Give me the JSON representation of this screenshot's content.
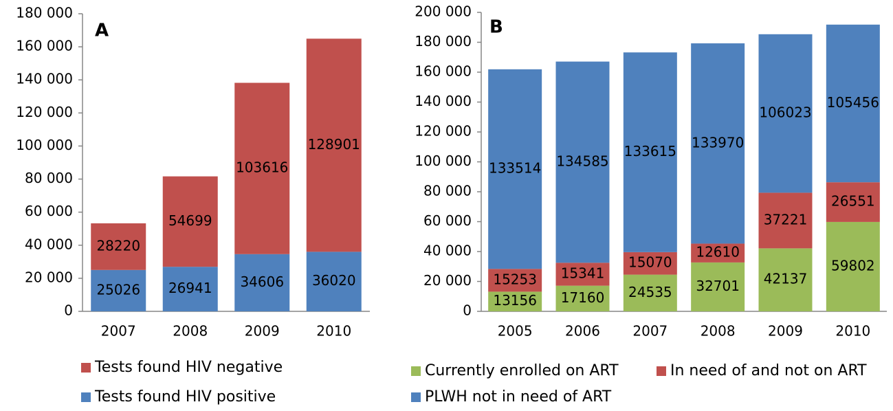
{
  "chart_data": [
    {
      "type": "stacked-bar",
      "title": "A",
      "categories": [
        "2007",
        "2008",
        "2009",
        "2010"
      ],
      "series": [
        {
          "name": "Tests found HIV positive",
          "color": "#4f81bd",
          "values": [
            25026,
            26941,
            34606,
            36020
          ]
        },
        {
          "name": "Tests found HIV negative",
          "color": "#c0504d",
          "values": [
            28220,
            54699,
            103616,
            128901
          ]
        }
      ],
      "ylim": [
        0,
        180000
      ],
      "yticks": [
        0,
        {
          "value": 20000,
          "label": "20 000"
        },
        {
          "value": 40000,
          "label": "40 000"
        },
        {
          "value": 60000,
          "label": "60 000"
        },
        {
          "value": 80000,
          "label": "80 000"
        },
        {
          "value": 100000,
          "label": "100 000"
        },
        {
          "value": 120000,
          "label": "120 000"
        },
        {
          "value": 140000,
          "label": "140 000"
        },
        {
          "value": 160000,
          "label": "160 000"
        },
        {
          "value": 180000,
          "label": "180 000"
        }
      ],
      "grid": false
    },
    {
      "type": "stacked-bar",
      "title": "B",
      "categories": [
        "2005",
        "2006",
        "2007",
        "2008",
        "2009",
        "2010"
      ],
      "series": [
        {
          "name": "Currently enrolled on ART",
          "color": "#9bbb59",
          "values": [
            13156,
            17160,
            24535,
            32701,
            42137,
            59802
          ]
        },
        {
          "name": "In need of and not on ART",
          "color": "#c0504d",
          "values": [
            15253,
            15341,
            15070,
            12610,
            37221,
            26551
          ]
        },
        {
          "name": "PLWH not in need of ART",
          "color": "#4f81bd",
          "values": [
            133514,
            134585,
            133615,
            133970,
            106023,
            105456
          ]
        }
      ],
      "ylim": [
        0,
        200000
      ],
      "yticks": [
        0,
        {
          "value": 20000,
          "label": "20 000"
        },
        {
          "value": 40000,
          "label": "40 000"
        },
        {
          "value": 60000,
          "label": "60 000"
        },
        {
          "value": 80000,
          "label": "80 000"
        },
        {
          "value": 100000,
          "label": "100 000"
        },
        {
          "value": 120000,
          "label": "120 000"
        },
        {
          "value": 140000,
          "label": "140 000"
        },
        {
          "value": 160000,
          "label": "160 000"
        },
        {
          "value": 180000,
          "label": "180 000"
        },
        {
          "value": 200000,
          "label": "200 000"
        }
      ],
      "grid": false
    }
  ]
}
